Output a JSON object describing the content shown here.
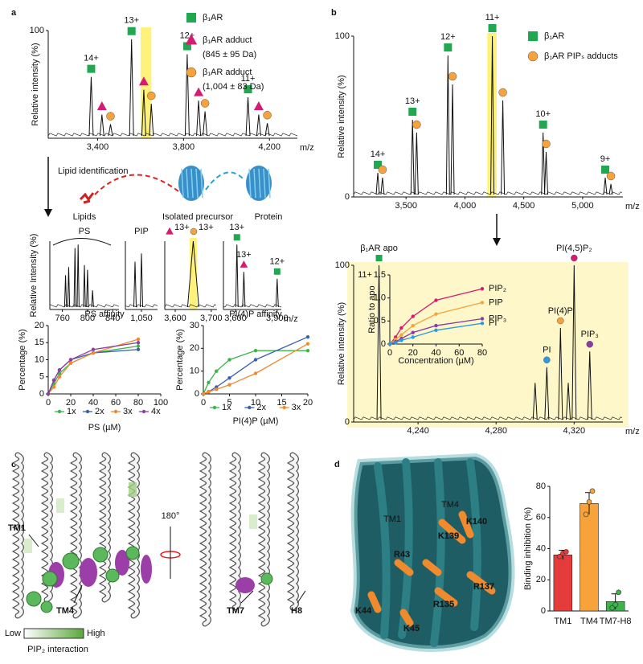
{
  "marker_styles": {
    "protein": {
      "shape": "square",
      "color": "#1fa84f"
    },
    "adduct": {
      "shape": "triangle",
      "color": "#d81b72"
    },
    "adduct2": {
      "shape": "circle",
      "color": "#f7a23b"
    },
    "pi": {
      "shape": "circle",
      "color": "#2b9be0"
    },
    "pi4p": {
      "shape": "circle",
      "color": "#f7a23b"
    },
    "pip2": {
      "shape": "circle",
      "color": "#d81b72"
    },
    "pip3": {
      "shape": "circle",
      "color": "#8e3aa6"
    }
  },
  "panel_a": {
    "label": "a",
    "legend": [
      {
        "marker": "protein",
        "text": [
          "β₁AR"
        ]
      },
      {
        "marker": "adduct",
        "text": [
          "β₁AR adduct",
          "(845 ± 95 Da)"
        ]
      },
      {
        "marker": "adduct2",
        "text": [
          "β₁AR adduct",
          "(1,004 ± 83 Da)"
        ]
      }
    ],
    "spectrum": {
      "type": "spectrum",
      "ylabel": "Relative intensity (%)",
      "xlabel": "m/z",
      "xlim": [
        3170,
        4330
      ],
      "ylim": [
        0,
        100
      ],
      "xticks": [
        {
          "value": 3400,
          "label": "3,400"
        },
        {
          "value": 3800,
          "label": "3,800"
        },
        {
          "value": 4200,
          "label": "4,200"
        }
      ],
      "yticks": [
        100
      ],
      "highlight": [
        3600,
        3650
      ],
      "peaks": [
        {
          "x": 3370,
          "y": 57,
          "marker": "protein",
          "label": "14+"
        },
        {
          "x": 3420,
          "y": 22,
          "marker": "adduct"
        },
        {
          "x": 3460,
          "y": 13,
          "marker": "adduct2"
        },
        {
          "x": 3558,
          "y": 92,
          "marker": "protein",
          "label": "13+"
        },
        {
          "x": 3615,
          "y": 45,
          "marker": "adduct"
        },
        {
          "x": 3650,
          "y": 32,
          "marker": "adduct2"
        },
        {
          "x": 3817,
          "y": 78,
          "marker": "protein",
          "label": "12+"
        },
        {
          "x": 3870,
          "y": 35,
          "marker": "adduct"
        },
        {
          "x": 3900,
          "y": 25,
          "marker": "adduct2"
        },
        {
          "x": 4100,
          "y": 38,
          "marker": "protein",
          "label": "11+"
        },
        {
          "x": 4150,
          "y": 22,
          "marker": "adduct"
        },
        {
          "x": 4190,
          "y": 14,
          "marker": "adduct2"
        }
      ]
    },
    "workflow": {
      "step": "Lipid identification",
      "lipids": "Lipids",
      "precursor": "Isolated precursor",
      "protein": "Protein"
    },
    "ms_panels": [
      {
        "type": "spectrum",
        "title": "PS",
        "ylabel": "Relative Intensity (%)",
        "xlim": [
          740,
          850
        ],
        "ylim": [
          0,
          100
        ],
        "xticks": [
          760,
          800,
          840
        ],
        "peaks": [
          {
            "x": 765,
            "y": 50
          },
          {
            "x": 770,
            "y": 62
          },
          {
            "x": 780,
            "y": 90
          },
          {
            "x": 785,
            "y": 95
          },
          {
            "x": 795,
            "y": 65
          },
          {
            "x": 800,
            "y": 58
          },
          {
            "x": 808,
            "y": 28
          }
        ]
      },
      {
        "type": "spectrum",
        "title": "PIP",
        "xlim": [
          1030,
          1070
        ],
        "ylim": [
          0,
          100
        ],
        "xticks": [
          {
            "value": 1050,
            "label": "1,050"
          }
        ],
        "peaks": [
          {
            "x": 1042,
            "y": 70
          },
          {
            "x": 1050,
            "y": 82
          }
        ]
      },
      {
        "type": "spectrum",
        "xlim": [
          3571,
          3716
        ],
        "ylim": [
          0,
          100
        ],
        "xticks": [
          {
            "value": 3600,
            "label": "3,600"
          },
          {
            "value": 3700,
            "label": "3,700"
          }
        ],
        "highlight": [
          3640,
          3660
        ],
        "annotations": [
          {
            "marker": "adduct",
            "label": "13+"
          },
          {
            "marker": "adduct2",
            "label": "13+"
          }
        ],
        "peaks": [
          {
            "x": 3650,
            "y": 100
          }
        ]
      },
      {
        "type": "spectrum",
        "xlabel": "m/z",
        "xlim": [
          3513,
          3930
        ],
        "ylim": [
          0,
          100
        ],
        "xticks": [
          {
            "value": 3600,
            "label": "3,600"
          },
          {
            "value": 3900,
            "label": "3,900"
          }
        ],
        "peaks": [
          {
            "x": 3610,
            "y": 95,
            "marker": "protein",
            "label": "13+"
          },
          {
            "x": 3660,
            "y": 55,
            "marker": "adduct",
            "label": "13+"
          },
          {
            "x": 3900,
            "y": 45,
            "marker": "protein",
            "label": "12+"
          }
        ]
      }
    ],
    "affinity": [
      {
        "type": "line",
        "title": "PS affinity",
        "ylabel": "Percentage (%)",
        "xlabel": "PS (µM)",
        "xlim": [
          0,
          100
        ],
        "ylim": [
          0,
          20
        ],
        "xticks": [
          0,
          20,
          40,
          60,
          80,
          100
        ],
        "yticks": [
          0,
          5,
          10,
          15,
          20
        ],
        "x": [
          0,
          5,
          10,
          20,
          40,
          80
        ],
        "series": [
          {
            "name": "1x",
            "color": "#3bb54a",
            "values": [
              0,
              3,
              6,
              9,
              12,
              14
            ]
          },
          {
            "name": "2x",
            "color": "#3a5fb0",
            "values": [
              0,
              4,
              7,
              10,
              12,
              13
            ]
          },
          {
            "name": "3x",
            "color": "#f08a2c",
            "values": [
              0,
              2,
              5,
              9,
              12,
              16
            ]
          },
          {
            "name": "4x",
            "color": "#8b3fa8",
            "values": [
              0,
              4,
              7,
              10,
              13,
              15
            ]
          }
        ]
      },
      {
        "type": "line",
        "title": "PI(4)P affinity",
        "ylabel": "Percentage (%)",
        "xlabel": "PI(4)P (µM)",
        "xlim": [
          0,
          20
        ],
        "ylim": [
          0,
          30
        ],
        "xticks": [
          0,
          5,
          10,
          15,
          20
        ],
        "yticks": [
          0,
          10,
          20,
          30
        ],
        "x": [
          0,
          1,
          2.5,
          5,
          10,
          20
        ],
        "series": [
          {
            "name": "1x",
            "color": "#3bb54a",
            "values": [
              0,
              5,
              10,
              15,
              19,
              19
            ]
          },
          {
            "name": "2x",
            "color": "#3a5fb0",
            "values": [
              0,
              1,
              3,
              7,
              15,
              25
            ]
          },
          {
            "name": "3x",
            "color": "#f08a2c",
            "values": [
              0,
              1,
              2,
              4,
              9,
              22
            ]
          }
        ]
      }
    ]
  },
  "panel_b": {
    "label": "b",
    "legend": [
      {
        "marker": "protein",
        "text": [
          "β₁AR"
        ]
      },
      {
        "marker": "adduct2",
        "text": [
          "β₁AR PIPₛ adducts"
        ]
      }
    ],
    "spectrum": {
      "type": "spectrum",
      "ylabel": "Relative intensity (%)",
      "xlabel": "m/z",
      "xlim": [
        3055,
        5342
      ],
      "ylim": [
        0,
        100
      ],
      "xticks": [
        {
          "value": 3500,
          "label": "3,500"
        },
        {
          "value": 4000,
          "label": "4,000"
        },
        {
          "value": 4500,
          "label": "4,500"
        },
        {
          "value": 5000,
          "label": "5,000"
        }
      ],
      "yticks": [
        0,
        100
      ],
      "highlight": [
        4190,
        4270
      ],
      "peaks": [
        {
          "x": 3260,
          "y": 15,
          "marker": "protein",
          "label": "14+"
        },
        {
          "x": 3300,
          "y": 12,
          "marker": "adduct2"
        },
        {
          "x": 3555,
          "y": 48,
          "marker": "protein",
          "label": "13+"
        },
        {
          "x": 3590,
          "y": 40,
          "marker": "adduct2"
        },
        {
          "x": 3856,
          "y": 88,
          "marker": "protein",
          "label": "12+"
        },
        {
          "x": 3895,
          "y": 70,
          "marker": "adduct2"
        },
        {
          "x": 4233,
          "y": 100,
          "marker": "protein",
          "label": "11+"
        },
        {
          "x": 4322,
          "y": 60,
          "marker": "adduct2"
        },
        {
          "x": 4664,
          "y": 40,
          "marker": "protein",
          "label": "10+"
        },
        {
          "x": 4690,
          "y": 28,
          "marker": "adduct2"
        },
        {
          "x": 5192,
          "y": 12,
          "marker": "protein",
          "label": "9+"
        },
        {
          "x": 5240,
          "y": 8,
          "marker": "adduct2"
        }
      ]
    },
    "detail": {
      "type": "spectrum",
      "ylabel": "Relative intensity (%)",
      "xlabel": "m/z",
      "charge": "11+",
      "xlim": [
        4207,
        4345
      ],
      "ylim": [
        0,
        100
      ],
      "xticks": [
        {
          "value": 4240,
          "label": "4,240"
        },
        {
          "value": 4280,
          "label": "4,280"
        },
        {
          "value": 4320,
          "label": "4,320"
        }
      ],
      "yticks": [
        0,
        100
      ],
      "peaks": [
        {
          "x": 4220,
          "y": 100,
          "marker": "protein",
          "label": "β₁AR apo"
        },
        {
          "x": 4300,
          "y": 25
        },
        {
          "x": 4306,
          "y": 35,
          "marker": "pi",
          "label": "PI"
        },
        {
          "x": 4313,
          "y": 60,
          "marker": "pi4p",
          "label": "PI(4)P"
        },
        {
          "x": 4317,
          "y": 25
        },
        {
          "x": 4320,
          "y": 100,
          "marker": "pip2",
          "label": "PI(4,5)P₂"
        },
        {
          "x": 4328,
          "y": 45,
          "marker": "pip3",
          "label": "PIP₃"
        }
      ]
    },
    "inset": {
      "type": "line",
      "ylabel": "Ratio to apo",
      "xlabel": "Concentration (µM)",
      "xlim": [
        0,
        80
      ],
      "ylim": [
        0,
        1.5
      ],
      "xticks": [
        0,
        20,
        40,
        60,
        80
      ],
      "yticks": [
        0,
        0.5,
        {
          "value": 1,
          "label": "1.0"
        },
        1.5
      ],
      "x": [
        0,
        5,
        10,
        20,
        40,
        80
      ],
      "series": [
        {
          "name": "PIP₂",
          "color": "#d81b72",
          "values": [
            0,
            0.15,
            0.35,
            0.6,
            0.95,
            1.2
          ]
        },
        {
          "name": "PIP",
          "color": "#f7a23b",
          "values": [
            0,
            0.1,
            0.2,
            0.4,
            0.65,
            0.9
          ]
        },
        {
          "name": "PIP₃",
          "color": "#8e3aa6",
          "values": [
            0,
            0.05,
            0.12,
            0.25,
            0.4,
            0.55
          ]
        },
        {
          "name": "PI",
          "color": "#2b9be0",
          "values": [
            0,
            0.03,
            0.08,
            0.15,
            0.3,
            0.45
          ]
        }
      ]
    }
  },
  "panel_c": {
    "label": "c",
    "tm1": "TM1",
    "tm4": "TM4",
    "rotation": "180°",
    "tm7": "TM7",
    "h8": "H8",
    "colorbar": {
      "low": "Low",
      "high": "High",
      "title": "PIP₂ interaction"
    }
  },
  "panel_d": {
    "label": "d",
    "helices": [
      "TM1",
      "TM4"
    ],
    "residues": [
      "K139",
      "K140",
      "R43",
      "R137",
      "R135",
      "K44",
      "K45"
    ],
    "chart": {
      "type": "bar",
      "ylabel": "Binding inhibition (%)",
      "categories": [
        "TM1",
        "TM4",
        "TM7-H8"
      ],
      "values": [
        36,
        69,
        6
      ],
      "errors": [
        3,
        7,
        5
      ],
      "points": [
        [
          35,
          37,
          38
        ],
        [
          62,
          70,
          77
        ],
        [
          2,
          4,
          12
        ]
      ],
      "colors": [
        "#e63b3b",
        "#f7a23b",
        "#3bb54a"
      ],
      "ylim": [
        0,
        80
      ],
      "yticks": [
        0,
        20,
        40,
        60,
        80
      ]
    }
  }
}
